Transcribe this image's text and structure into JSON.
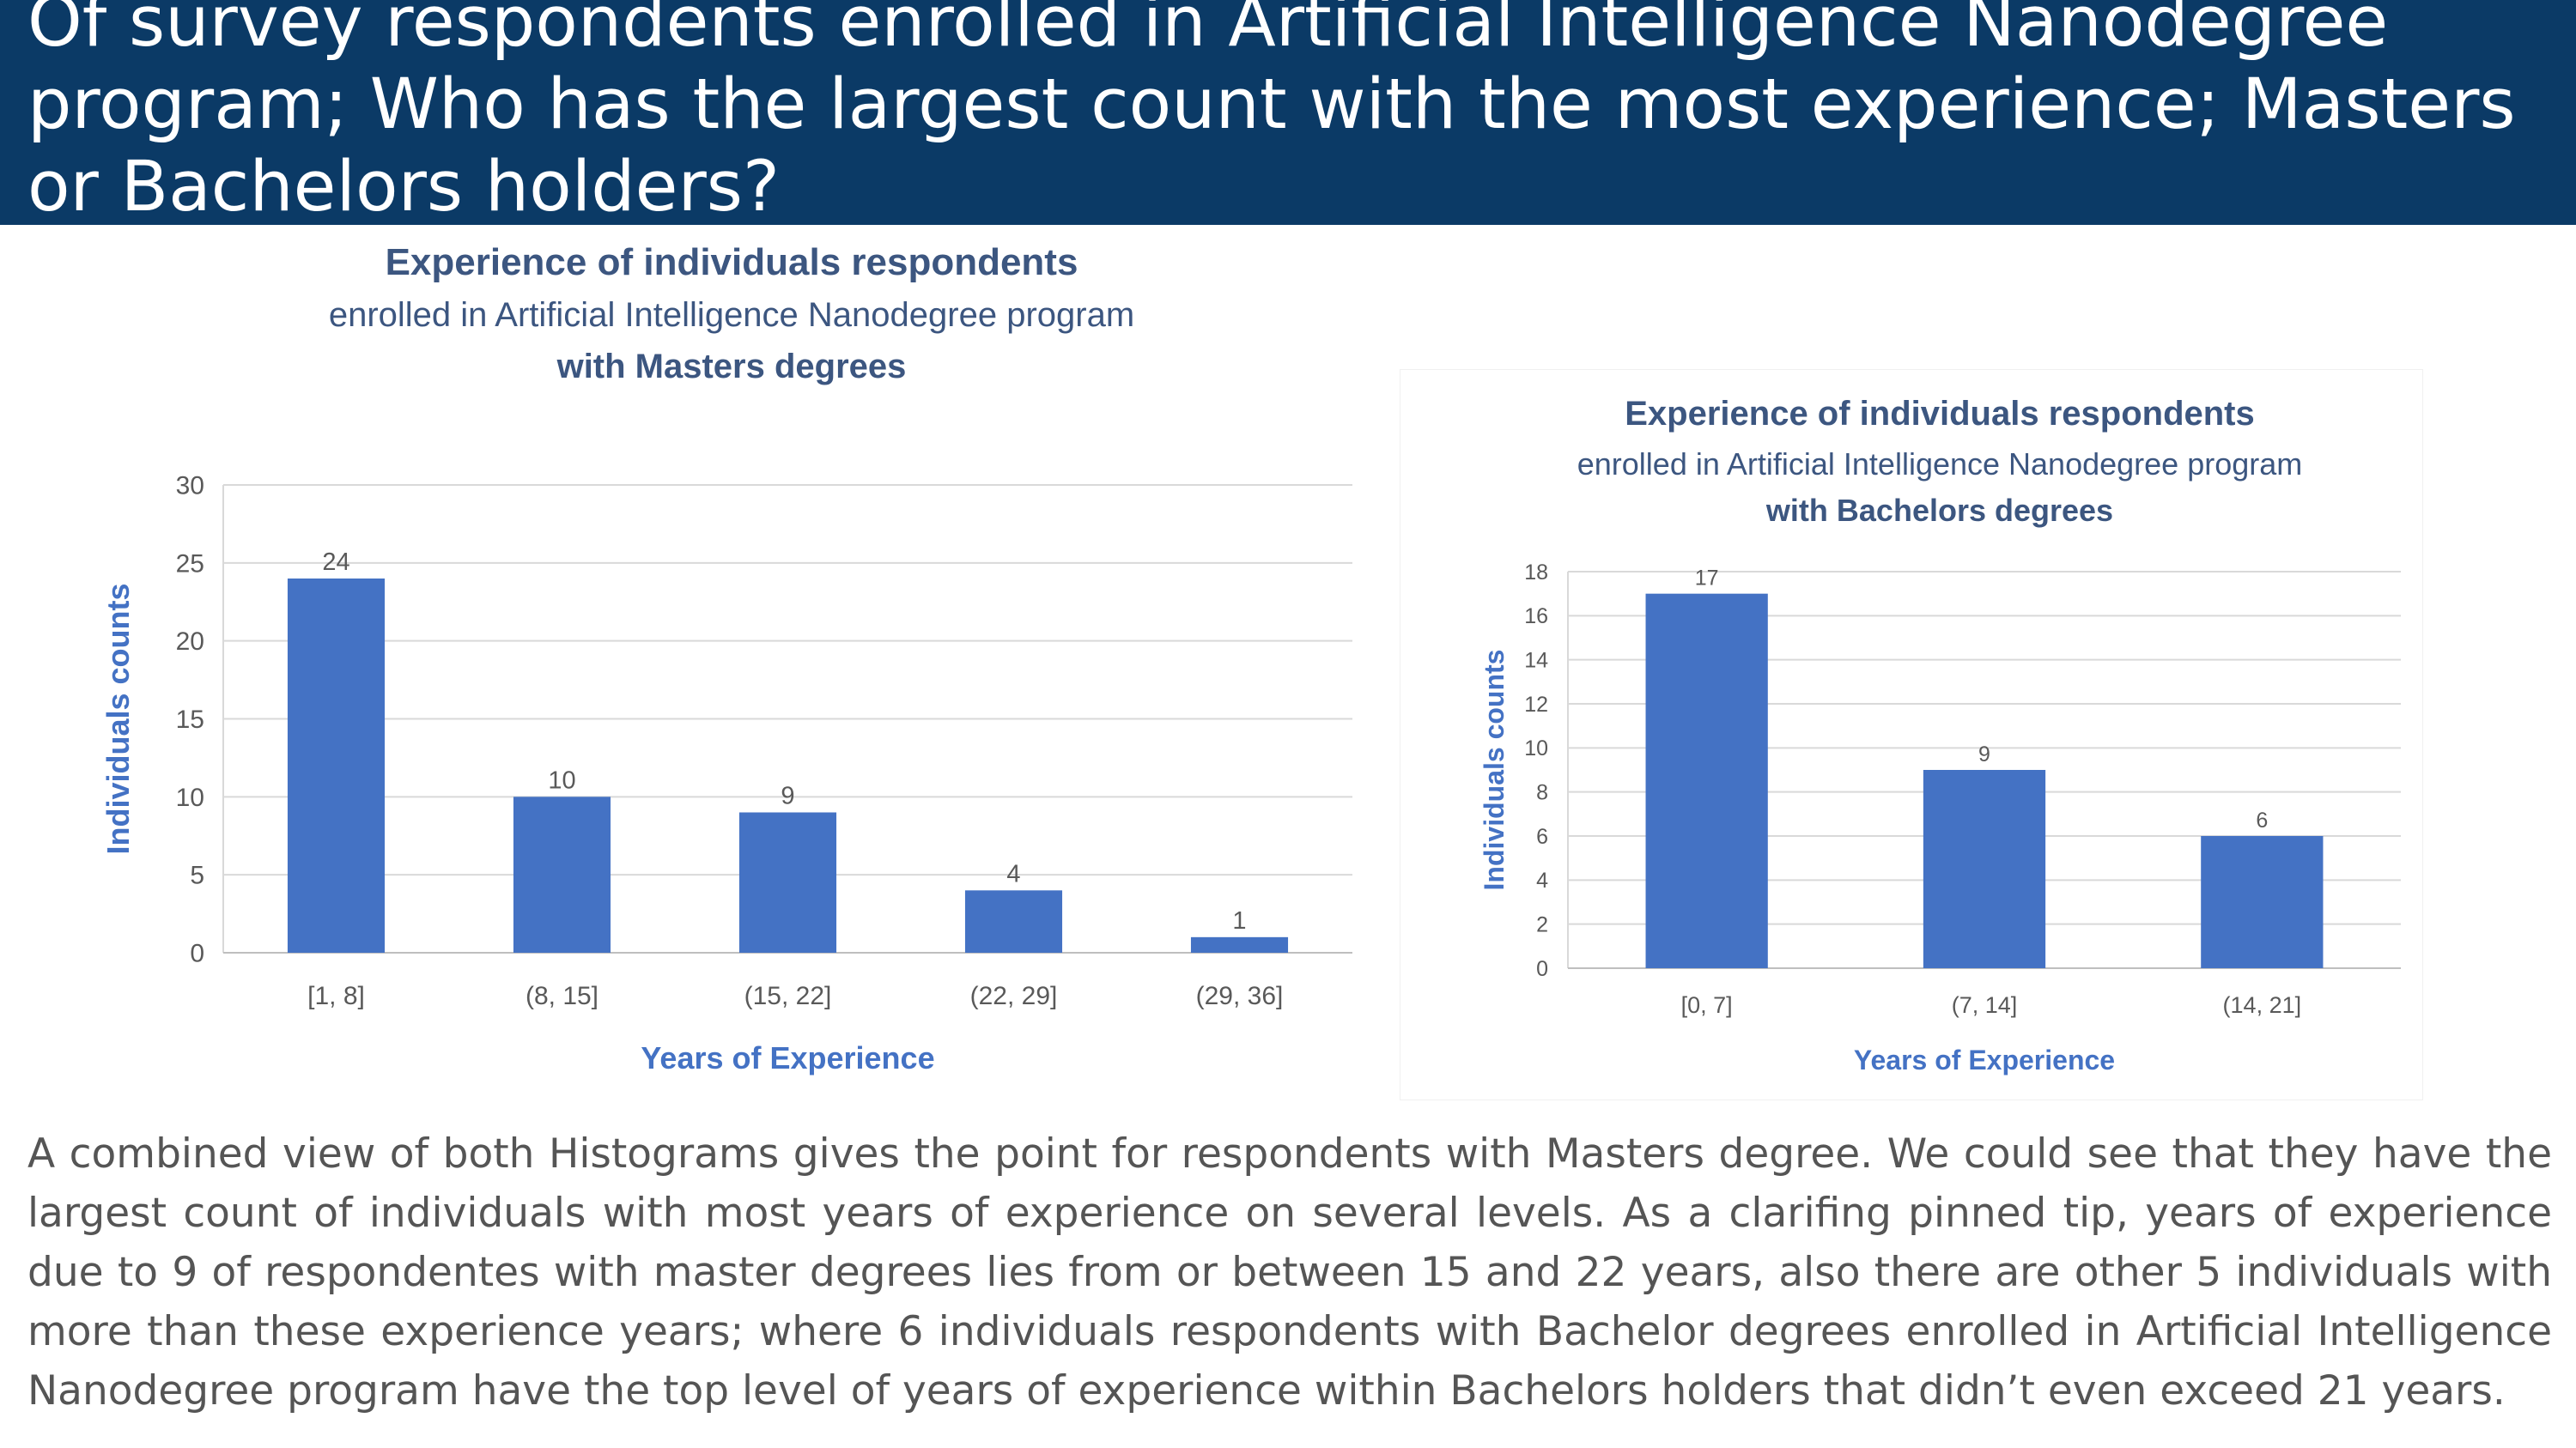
{
  "header": {
    "title": "Of survey respondents enrolled in Artificial Intelligence Nanodegree program; Who has the largest count with the most experience; Masters or Bachelors holders?"
  },
  "chart_data": [
    {
      "type": "bar",
      "title": "Experience of individuals respondents",
      "subtitle_lines": [
        "enrolled in Artificial Intelligence Nanodegree program",
        "with Masters degrees"
      ],
      "categories": [
        "[1, 8]",
        "(8, 15]",
        "(15, 22]",
        "(22, 29]",
        "(29, 36]"
      ],
      "values": [
        24,
        10,
        9,
        4,
        1
      ],
      "xlabel": "Years of Experience",
      "ylabel": "Individuals counts",
      "ylim": [
        0,
        30
      ],
      "yticks": [
        0,
        5,
        10,
        15,
        20,
        25,
        30
      ],
      "grid": true,
      "bar_color": "#4472c4"
    },
    {
      "type": "bar",
      "title": "Experience of individuals respondents",
      "subtitle_lines": [
        "enrolled in Artificial Intelligence Nanodegree program",
        "with Bachelors degrees"
      ],
      "categories": [
        "[0, 7]",
        "(7, 14]",
        "(14, 21]"
      ],
      "values": [
        17,
        9,
        6
      ],
      "xlabel": "Years of Experience",
      "ylabel": "Individuals counts",
      "ylim": [
        0,
        18
      ],
      "yticks": [
        0,
        2,
        4,
        6,
        8,
        10,
        12,
        14,
        16,
        18
      ],
      "grid": true,
      "bar_color": "#4472c4"
    }
  ],
  "summary": {
    "text": "A combined view of both Histograms gives the point for respondents with Masters degree. We could see that they have the largest count of individuals with most years of experience on several levels. As a clarifing pinned tip, years of experience due to 9 of respondentes with master degrees lies from or between 15 and 22 years, also there are other 5 individuals with more than these experience years; where 6 individuals respondents with Bachelor degrees enrolled in Artificial Intelligence Nanodegree program have the top level of years of experience within Bachelors holders that didn’t even exceed 21 years."
  }
}
